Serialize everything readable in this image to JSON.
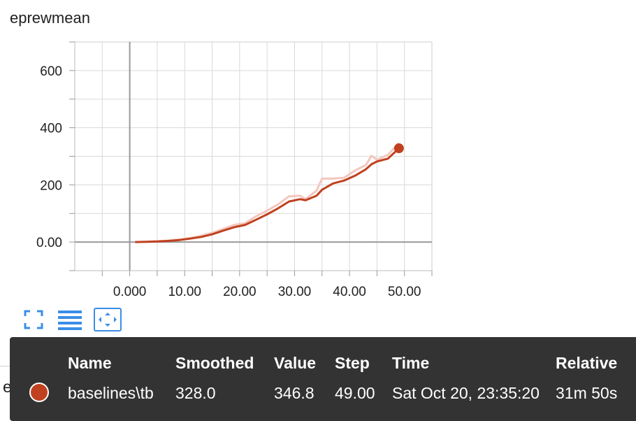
{
  "card": {
    "title": "eprewmean"
  },
  "under_card_text": "explained_variance",
  "toolbar": {
    "expand_icon": "fullscreen-icon",
    "log_icon": "data-series-icon",
    "fit_icon": "fit-domain-icon"
  },
  "tooltip": {
    "headers": [
      "Name",
      "Smoothed",
      "Value",
      "Step",
      "Time",
      "Relative"
    ],
    "row": {
      "name": "baselines\\tb",
      "smoothed": "328.0",
      "value": "346.8",
      "step": "49.00",
      "time": "Sat Oct 20, 23:35:20",
      "relative": "31m 50s"
    }
  },
  "colors": {
    "series": "#c0411f",
    "series_raw": "#f3c7bd",
    "tooltip_bg": "#333333",
    "accent": "#3a8ee6"
  },
  "chart_data": {
    "type": "line",
    "title": "eprewmean",
    "xlim": [
      -10,
      55
    ],
    "ylim": [
      -100,
      700
    ],
    "x_ticks": [
      "0.000",
      "10.00",
      "20.00",
      "30.00",
      "40.00",
      "50.00"
    ],
    "x_tick_values": [
      0,
      10,
      20,
      30,
      40,
      50
    ],
    "y_ticks": [
      "0.00",
      "200",
      "400",
      "600"
    ],
    "y_tick_values": [
      0,
      200,
      400,
      600
    ],
    "grid": true,
    "series": [
      {
        "name": "baselines\\tb",
        "style": "smoothed",
        "x": [
          1,
          3,
          5,
          7,
          9,
          11,
          13,
          15,
          17,
          19,
          21,
          23,
          25,
          27,
          29,
          31,
          32,
          34,
          35,
          37,
          39,
          41,
          43,
          44,
          45,
          47,
          49
        ],
        "y": [
          0,
          1,
          2,
          4,
          7,
          12,
          18,
          27,
          40,
          52,
          60,
          78,
          97,
          118,
          142,
          150,
          146,
          162,
          183,
          205,
          215,
          232,
          255,
          272,
          282,
          292,
          328
        ]
      },
      {
        "name": "baselines\\tb",
        "style": "raw",
        "x": [
          1,
          3,
          5,
          7,
          9,
          11,
          13,
          15,
          17,
          19,
          21,
          23,
          25,
          27,
          29,
          31,
          32,
          34,
          35,
          37,
          39,
          41,
          43,
          44,
          45,
          47,
          49
        ],
        "y": [
          0,
          1,
          3,
          5,
          9,
          14,
          22,
          32,
          46,
          60,
          66,
          90,
          110,
          132,
          160,
          162,
          150,
          180,
          222,
          222,
          225,
          250,
          270,
          302,
          288,
          305,
          346.8
        ]
      }
    ]
  }
}
